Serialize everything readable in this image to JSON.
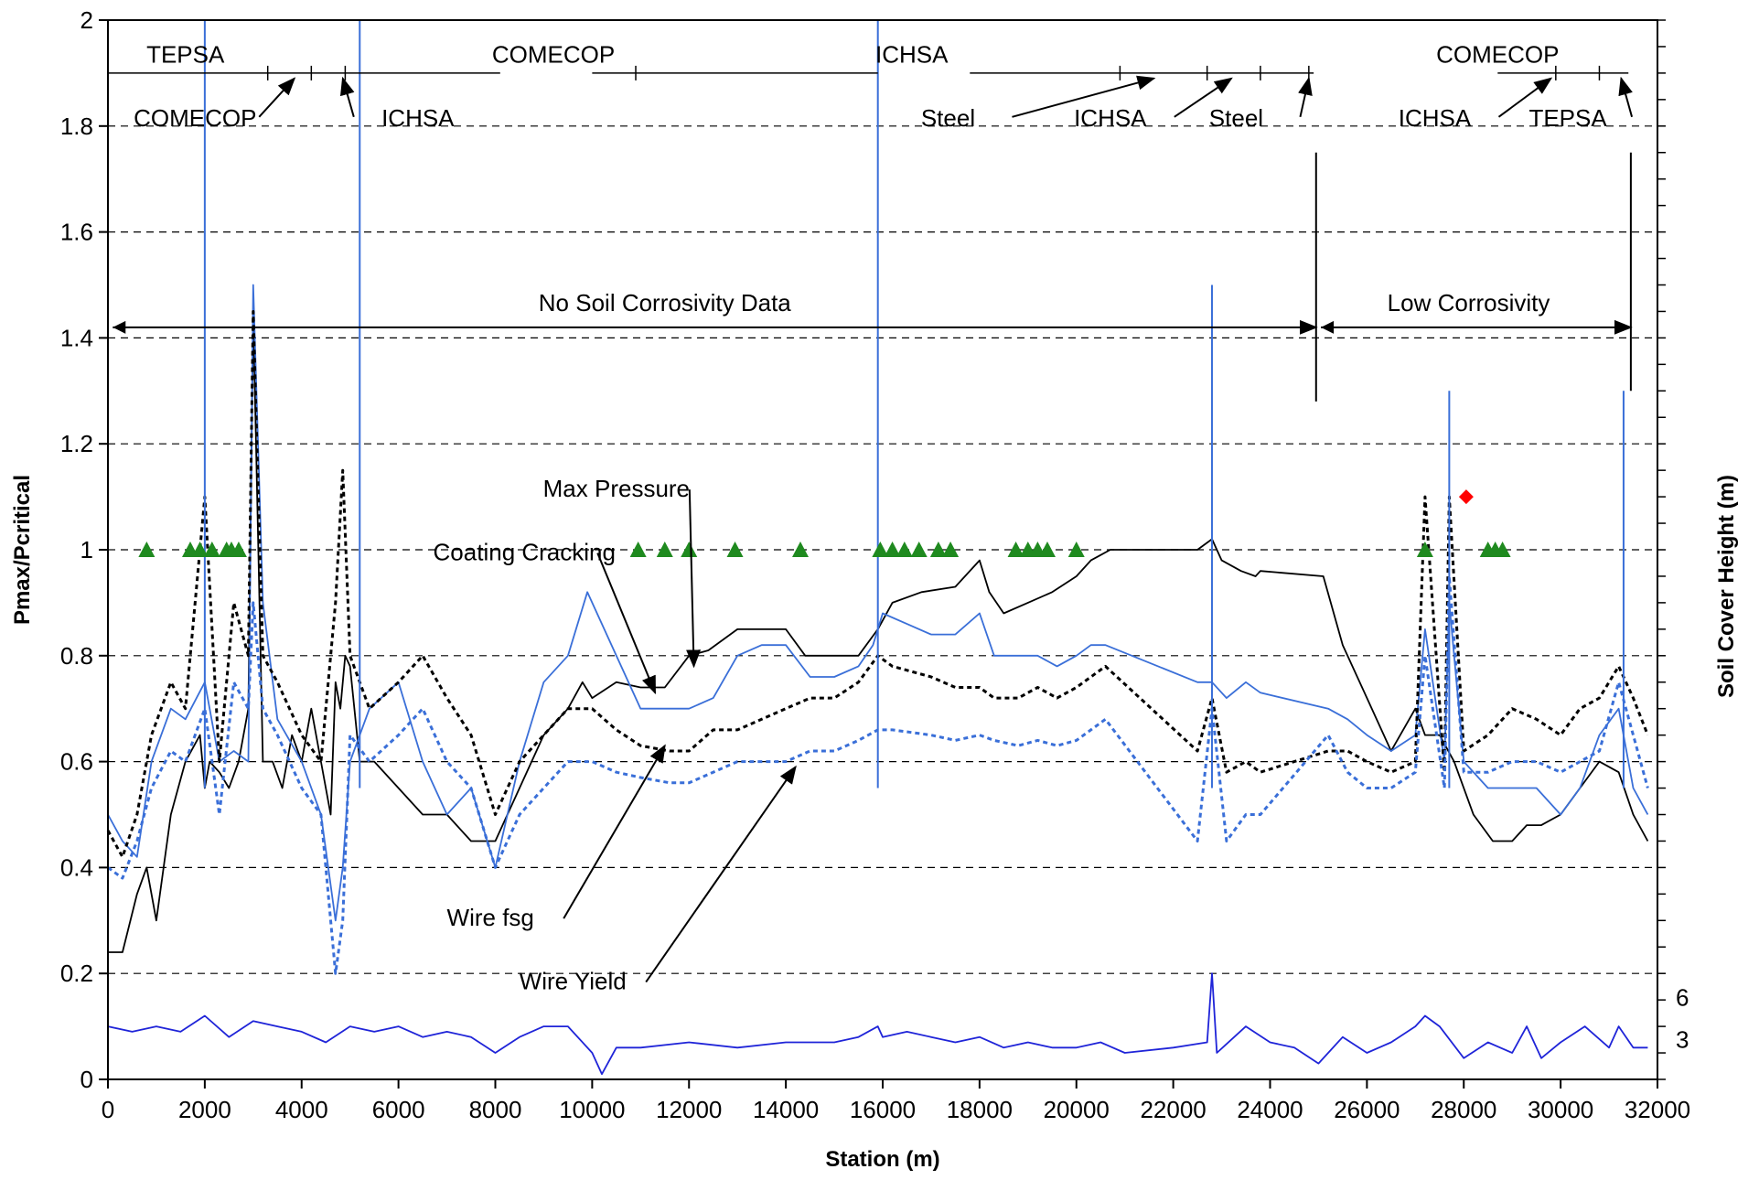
{
  "chart_data": {
    "type": "line",
    "xlabel": "Station (m)",
    "ylabel": "Pmax/Pcritical",
    "y2label": "Soil Cover Height (m)",
    "xlim": [
      0,
      32000
    ],
    "ylim": [
      0,
      2
    ],
    "x_ticks": [
      "0",
      "2000",
      "4000",
      "6000",
      "8000",
      "10000",
      "12000",
      "14000",
      "16000",
      "18000",
      "20000",
      "22000",
      "24000",
      "26000",
      "28000",
      "30000",
      "32000"
    ],
    "y_ticks": [
      "0",
      "0.2",
      "0.4",
      "0.6",
      "0.8",
      "1",
      "1.2",
      "1.4",
      "1.6",
      "1.8",
      "2"
    ],
    "y2_ticks": [
      "3",
      "6"
    ],
    "grid": "horizontal-dashed",
    "series": [
      {
        "name": "Max Pressure",
        "color": "#000000",
        "style": "solid",
        "x": [
          0,
          300,
          600,
          800,
          1000,
          1300,
          1600,
          1900,
          2000,
          2100,
          2300,
          2500,
          2700,
          2900,
          3000,
          3200,
          3400,
          3600,
          3800,
          4000,
          4200,
          4400,
          4600,
          4700,
          4800,
          4900,
          5000,
          5200,
          5500,
          6000,
          6500,
          7000,
          7500,
          8000,
          8500,
          9000,
          9500,
          9800,
          10000,
          10500,
          11000,
          11500,
          12000,
          12400,
          13000,
          13600,
          14000,
          14400,
          15000,
          15500,
          15900,
          16200,
          16800,
          17500,
          18000,
          18200,
          18500,
          19000,
          19500,
          20000,
          20300,
          20500,
          20700,
          22500,
          22800,
          23000,
          23400,
          23700,
          23800,
          25100,
          25500,
          26000,
          26500,
          27000,
          27200,
          27500,
          27800,
          28200,
          28600,
          29000,
          29300,
          29600,
          30000,
          30400,
          30800,
          31200,
          31500,
          31800
        ],
        "y": [
          0.24,
          0.24,
          0.35,
          0.4,
          0.3,
          0.5,
          0.6,
          0.65,
          0.55,
          0.6,
          0.58,
          0.55,
          0.6,
          0.7,
          1.45,
          0.6,
          0.6,
          0.55,
          0.65,
          0.6,
          0.7,
          0.6,
          0.5,
          0.75,
          0.7,
          0.8,
          0.78,
          0.6,
          0.6,
          0.55,
          0.5,
          0.5,
          0.45,
          0.45,
          0.55,
          0.65,
          0.7,
          0.75,
          0.72,
          0.75,
          0.74,
          0.74,
          0.8,
          0.81,
          0.85,
          0.85,
          0.85,
          0.8,
          0.8,
          0.8,
          0.85,
          0.9,
          0.92,
          0.93,
          0.98,
          0.92,
          0.88,
          0.9,
          0.92,
          0.95,
          0.98,
          0.99,
          1.0,
          1.0,
          1.02,
          0.98,
          0.96,
          0.95,
          0.96,
          0.95,
          0.82,
          0.72,
          0.62,
          0.7,
          0.65,
          0.65,
          0.6,
          0.5,
          0.45,
          0.45,
          0.48,
          0.48,
          0.5,
          0.55,
          0.6,
          0.58,
          0.5,
          0.45
        ]
      },
      {
        "name": "Coating Cracking",
        "color": "#3a6fd8",
        "style": "solid",
        "x": [
          0,
          300,
          600,
          900,
          1300,
          1600,
          2000,
          2300,
          2600,
          2900,
          3000,
          3200,
          3500,
          4000,
          4400,
          4700,
          4850,
          5000,
          5400,
          6000,
          6500,
          7000,
          7500,
          8000,
          8500,
          9000,
          9500,
          9900,
          10500,
          11000,
          11600,
          12000,
          12500,
          13000,
          13500,
          14000,
          14500,
          15000,
          15500,
          15800,
          16000,
          16500,
          17000,
          17500,
          18000,
          18300,
          18800,
          19200,
          19600,
          20000,
          20300,
          20600,
          22500,
          22800,
          23100,
          23500,
          23800,
          25200,
          25600,
          26000,
          26500,
          27000,
          27200,
          27600,
          27700,
          28000,
          28500,
          29000,
          29500,
          30000,
          30400,
          30800,
          31200,
          31500,
          31800
        ],
        "y": [
          0.5,
          0.45,
          0.42,
          0.6,
          0.7,
          0.68,
          0.75,
          0.6,
          0.62,
          0.6,
          1.5,
          0.9,
          0.68,
          0.6,
          0.5,
          0.3,
          0.4,
          0.6,
          0.7,
          0.75,
          0.6,
          0.5,
          0.55,
          0.4,
          0.6,
          0.75,
          0.8,
          0.92,
          0.8,
          0.7,
          0.7,
          0.7,
          0.72,
          0.8,
          0.82,
          0.82,
          0.76,
          0.76,
          0.78,
          0.82,
          0.88,
          0.86,
          0.84,
          0.84,
          0.88,
          0.8,
          0.8,
          0.8,
          0.78,
          0.8,
          0.82,
          0.82,
          0.75,
          0.75,
          0.72,
          0.75,
          0.73,
          0.7,
          0.68,
          0.65,
          0.62,
          0.65,
          0.85,
          0.6,
          0.9,
          0.6,
          0.55,
          0.55,
          0.55,
          0.5,
          0.55,
          0.65,
          0.7,
          0.55,
          0.5
        ]
      },
      {
        "name": "Wire fsg",
        "color": "#000000",
        "style": "dashed",
        "x": [
          0,
          300,
          600,
          900,
          1300,
          1600,
          2000,
          2300,
          2600,
          2900,
          3000,
          3200,
          3500,
          4000,
          4400,
          4700,
          4850,
          5000,
          5400,
          6000,
          6500,
          7000,
          7500,
          8000,
          8500,
          9000,
          9500,
          10000,
          10500,
          11000,
          11600,
          12000,
          12500,
          13000,
          13500,
          14000,
          14500,
          15000,
          15500,
          15900,
          16200,
          17000,
          17500,
          18000,
          18300,
          18800,
          19200,
          19600,
          20000,
          20300,
          20600,
          22500,
          22800,
          23100,
          23500,
          23800,
          25200,
          25600,
          26000,
          26500,
          27000,
          27200,
          27600,
          27700,
          28000,
          28500,
          29000,
          29500,
          30000,
          30400,
          30800,
          31200,
          31500,
          31800
        ],
        "y": [
          0.47,
          0.42,
          0.5,
          0.65,
          0.75,
          0.7,
          1.1,
          0.6,
          0.9,
          0.8,
          1.45,
          0.8,
          0.75,
          0.65,
          0.6,
          0.9,
          1.15,
          0.8,
          0.7,
          0.75,
          0.8,
          0.72,
          0.65,
          0.5,
          0.6,
          0.65,
          0.7,
          0.7,
          0.66,
          0.63,
          0.62,
          0.62,
          0.66,
          0.66,
          0.68,
          0.7,
          0.72,
          0.72,
          0.75,
          0.8,
          0.78,
          0.76,
          0.74,
          0.74,
          0.72,
          0.72,
          0.74,
          0.72,
          0.74,
          0.76,
          0.78,
          0.62,
          0.72,
          0.58,
          0.6,
          0.58,
          0.62,
          0.62,
          0.6,
          0.58,
          0.6,
          1.1,
          0.58,
          1.1,
          0.62,
          0.65,
          0.7,
          0.68,
          0.65,
          0.7,
          0.72,
          0.78,
          0.72,
          0.65
        ]
      },
      {
        "name": "Wire Yield",
        "color": "#3a6fd8",
        "style": "dashed",
        "x": [
          0,
          300,
          600,
          900,
          1300,
          1600,
          2000,
          2300,
          2600,
          2900,
          3000,
          3200,
          3500,
          4000,
          4400,
          4700,
          4850,
          5000,
          5400,
          6000,
          6500,
          7000,
          7500,
          8000,
          8500,
          9000,
          9500,
          10000,
          10500,
          11000,
          11600,
          12000,
          12500,
          13000,
          13500,
          14000,
          14500,
          15000,
          15500,
          15900,
          16200,
          17000,
          17500,
          18000,
          18300,
          18800,
          19200,
          19600,
          20000,
          20300,
          20600,
          22500,
          22800,
          23100,
          23500,
          23800,
          25200,
          25600,
          26000,
          26500,
          27000,
          27200,
          27600,
          27700,
          28000,
          28500,
          29000,
          29500,
          30000,
          30400,
          30800,
          31200,
          31500,
          31800
        ],
        "y": [
          0.4,
          0.38,
          0.45,
          0.55,
          0.62,
          0.6,
          0.7,
          0.5,
          0.75,
          0.7,
          0.9,
          0.7,
          0.65,
          0.55,
          0.5,
          0.2,
          0.3,
          0.65,
          0.6,
          0.65,
          0.7,
          0.6,
          0.55,
          0.4,
          0.5,
          0.55,
          0.6,
          0.6,
          0.58,
          0.57,
          0.56,
          0.56,
          0.58,
          0.6,
          0.6,
          0.6,
          0.62,
          0.62,
          0.64,
          0.66,
          0.66,
          0.65,
          0.64,
          0.65,
          0.64,
          0.63,
          0.64,
          0.63,
          0.64,
          0.66,
          0.68,
          0.45,
          0.7,
          0.45,
          0.5,
          0.5,
          0.65,
          0.58,
          0.55,
          0.55,
          0.58,
          0.8,
          0.55,
          0.95,
          0.58,
          0.58,
          0.6,
          0.6,
          0.58,
          0.6,
          0.62,
          0.75,
          0.65,
          0.55
        ]
      },
      {
        "name": "Soil Cover Height",
        "color": "#1f24d8",
        "style": "solid",
        "axis": "right",
        "x": [
          0,
          500,
          1000,
          1500,
          2000,
          2500,
          3000,
          3500,
          4000,
          4500,
          5000,
          5500,
          6000,
          6500,
          7000,
          7500,
          8000,
          8500,
          9000,
          9500,
          10000,
          10200,
          10500,
          11000,
          12000,
          13000,
          14000,
          15000,
          15500,
          15900,
          16000,
          16500,
          17000,
          17500,
          18000,
          18500,
          19000,
          19500,
          20000,
          20500,
          21000,
          22000,
          22700,
          22800,
          22900,
          23500,
          24000,
          24500,
          25000,
          25500,
          26000,
          26500,
          27000,
          27200,
          27500,
          28000,
          28500,
          29000,
          29300,
          29600,
          30000,
          30500,
          31000,
          31200,
          31500,
          31800
        ],
        "y": [
          0.1,
          0.09,
          0.1,
          0.09,
          0.12,
          0.08,
          0.11,
          0.1,
          0.09,
          0.07,
          0.1,
          0.09,
          0.1,
          0.08,
          0.09,
          0.08,
          0.05,
          0.08,
          0.1,
          0.1,
          0.05,
          0.01,
          0.06,
          0.06,
          0.07,
          0.06,
          0.07,
          0.07,
          0.08,
          0.1,
          0.08,
          0.09,
          0.08,
          0.07,
          0.08,
          0.06,
          0.07,
          0.06,
          0.06,
          0.07,
          0.05,
          0.06,
          0.07,
          0.2,
          0.05,
          0.1,
          0.07,
          0.06,
          0.03,
          0.08,
          0.05,
          0.07,
          0.1,
          0.12,
          0.1,
          0.04,
          0.07,
          0.05,
          0.1,
          0.04,
          0.07,
          0.1,
          0.06,
          0.1,
          0.06,
          0.06
        ]
      }
    ],
    "spikes": [
      {
        "x": 2000,
        "color": "#3a6fd8",
        "y": 2.0
      },
      {
        "x": 5200,
        "color": "#3a6fd8",
        "y": 2.0
      },
      {
        "x": 15900,
        "color": "#3a6fd8",
        "y": 2.0
      },
      {
        "x": 22800,
        "color": "#3a6fd8",
        "y": 1.5
      },
      {
        "x": 27700,
        "color": "#3a6fd8",
        "y": 1.3
      },
      {
        "x": 31300,
        "color": "#3a6fd8",
        "y": 1.3
      }
    ],
    "triangles": {
      "color": "#1f8a1f",
      "y": 1.0,
      "x": [
        800,
        1700,
        1900,
        2150,
        2450,
        2550,
        2700,
        10950,
        11500,
        12000,
        12950,
        14300,
        15950,
        16200,
        16450,
        16750,
        17150,
        17400,
        18750,
        19000,
        19200,
        19400,
        20000,
        27200,
        28500,
        28650,
        28800
      ]
    },
    "red_point": {
      "x": 28050,
      "y": 1.1,
      "color": "#ff0000"
    },
    "annotations": {
      "top_row": [
        {
          "text": "TEPSA",
          "x": 1600,
          "y": 1.92
        },
        {
          "text": "COMECOP",
          "x": 9200,
          "y": 1.92
        },
        {
          "text": "ICHSA",
          "x": 16600,
          "y": 1.92
        },
        {
          "text": "COMECOP",
          "x": 28700,
          "y": 1.92
        }
      ],
      "below_row": [
        {
          "text": "COMECOP",
          "x": 1800,
          "y": 1.8,
          "arrow_to_x": 3850,
          "arrow_to_y": 1.89
        },
        {
          "text": "ICHSA",
          "x": 6400,
          "y": 1.8,
          "arrow_to_x": 4850,
          "arrow_to_y": 1.89
        },
        {
          "text": "Steel",
          "x": 17350,
          "y": 1.8,
          "arrow_to_x": 21600,
          "arrow_to_y": 1.89
        },
        {
          "text": "ICHSA",
          "x": 20700,
          "y": 1.8,
          "arrow_to_x": 23200,
          "arrow_to_y": 1.89
        },
        {
          "text": "Steel",
          "x": 23300,
          "y": 1.8,
          "arrow_to_x": 24800,
          "arrow_to_y": 1.89
        },
        {
          "text": "ICHSA",
          "x": 27400,
          "y": 1.8,
          "arrow_to_x": 29800,
          "arrow_to_y": 1.89
        },
        {
          "text": "TEPSA",
          "x": 30150,
          "y": 1.8,
          "arrow_to_x": 31250,
          "arrow_to_y": 1.89
        }
      ],
      "ranges": [
        {
          "text": "No Soil Corrosivity Data",
          "x1": 100,
          "x2": 24950,
          "y": 1.42,
          "label_x": 11500
        },
        {
          "text": "Low Corrosivity",
          "x1": 25050,
          "x2": 31450,
          "y": 1.42,
          "label_x": 28100
        }
      ],
      "callouts": [
        {
          "text": "Max Pressure",
          "x": 10500,
          "y": 1.1,
          "arrow_to_x": 12100,
          "arrow_to_y": 0.78
        },
        {
          "text": "Coating Cracking",
          "x": 8600,
          "y": 0.98,
          "arrow_to_x": 11300,
          "arrow_to_y": 0.73
        },
        {
          "text": "Wire fsg",
          "x": 7900,
          "y": 0.29,
          "arrow_to_x": 11500,
          "arrow_to_y": 0.63
        },
        {
          "text": "Wire Yield",
          "x": 9600,
          "y": 0.17,
          "arrow_to_x": 14200,
          "arrow_to_y": 0.59
        }
      ]
    }
  }
}
